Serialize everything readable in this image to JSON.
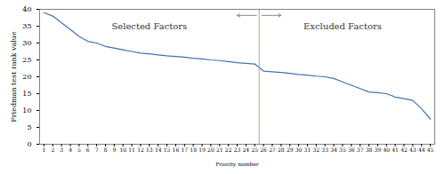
{
  "chart_data": {
    "type": "line",
    "xlabel": "Priority number",
    "ylabel": "Friedman test rank value",
    "x": [
      1,
      2,
      3,
      4,
      5,
      6,
      7,
      8,
      9,
      10,
      11,
      12,
      13,
      14,
      15,
      16,
      17,
      18,
      19,
      20,
      21,
      22,
      23,
      24,
      25,
      26,
      27,
      28,
      29,
      30,
      31,
      32,
      33,
      34,
      35,
      36,
      37,
      38,
      39,
      40,
      41,
      42,
      43,
      44,
      45
    ],
    "values": [
      39,
      38,
      36,
      34,
      32,
      30.5,
      30,
      29,
      28.5,
      28,
      27.5,
      27,
      26.8,
      26.5,
      26.2,
      26,
      25.8,
      25.5,
      25.3,
      25,
      24.8,
      24.5,
      24.2,
      24,
      23.8,
      21.7,
      21.5,
      21.3,
      21.0,
      20.7,
      20.5,
      20.2,
      20.0,
      19.5,
      18.5,
      17.5,
      16.5,
      15.5,
      15.3,
      15.0,
      14.0,
      13.5,
      13.0,
      10.5,
      7.5
    ],
    "color": "#3f72af",
    "xlim": [
      0.5,
      45.5
    ],
    "xticks": [
      1,
      2,
      3,
      4,
      5,
      6,
      7,
      8,
      9,
      10,
      11,
      12,
      13,
      14,
      15,
      16,
      17,
      18,
      19,
      20,
      21,
      22,
      23,
      24,
      25,
      26,
      27,
      28,
      29,
      30,
      31,
      32,
      33,
      34,
      35,
      36,
      37,
      38,
      39,
      40,
      41,
      42,
      43,
      44,
      45
    ],
    "ylim": [
      0,
      40
    ],
    "yticks": [
      0,
      5,
      10,
      15,
      20,
      25,
      30,
      35,
      40
    ],
    "grid": false,
    "vlines": [
      {
        "x": 25.5,
        "color": "#c49a94"
      }
    ],
    "annotations": [
      {
        "text": "Selected Factors",
        "x": 13,
        "y": 35,
        "color": "#333333"
      },
      {
        "text": "Excluded Factors",
        "x": 35,
        "y": 35,
        "color": "#333333"
      }
    ],
    "arrows": [
      {
        "x1": 25.2,
        "x2": 23,
        "y": 38.2,
        "color": "#888888"
      },
      {
        "x1": 25.8,
        "x2": 28,
        "y": 38.2,
        "color": "#888888"
      }
    ]
  }
}
